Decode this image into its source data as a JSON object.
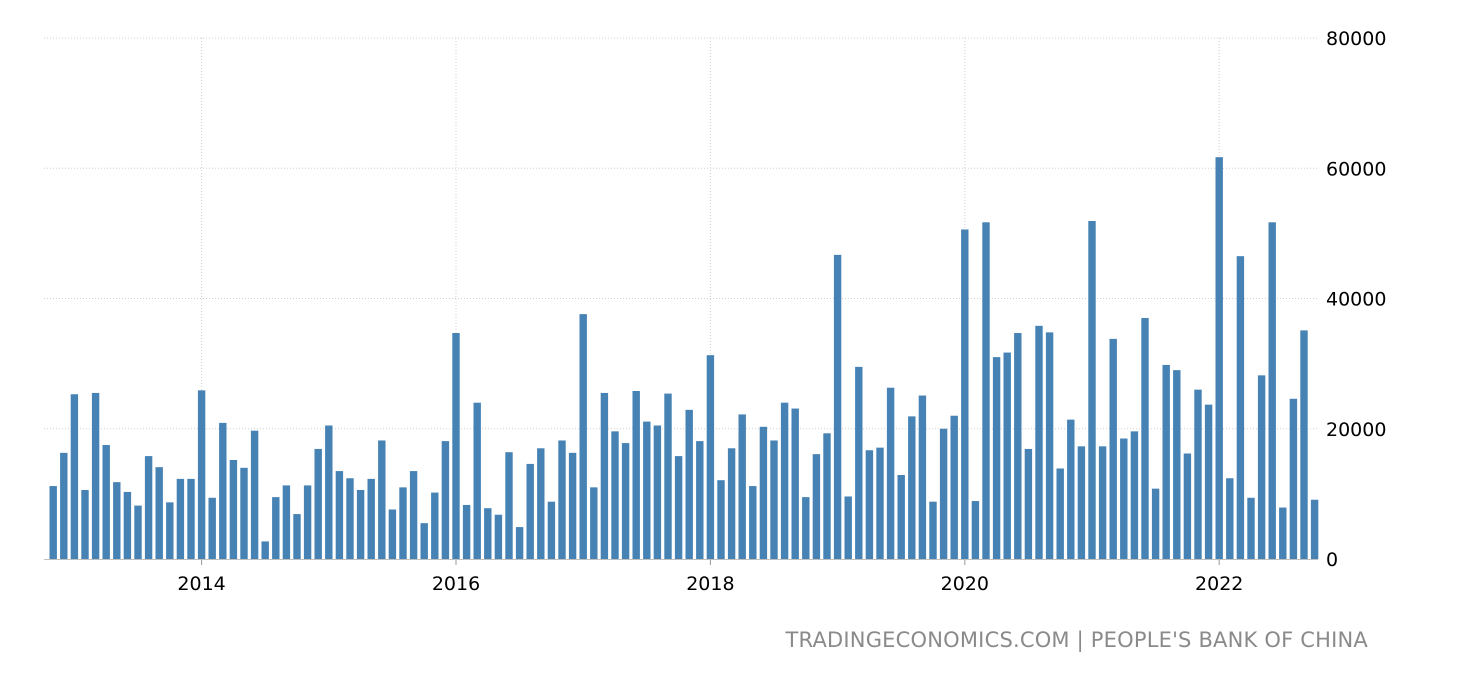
{
  "source": "TRADINGECONOMICS.COM | PEOPLE'S BANK OF CHINA",
  "chart_data": {
    "type": "bar",
    "title": "",
    "xlabel": "",
    "ylabel": "",
    "ylim": [
      0,
      80000
    ],
    "y_ticks": [
      "0",
      "20000",
      "40000",
      "60000",
      "80000"
    ],
    "x_ticks": [
      "2014",
      "2016",
      "2018",
      "2020",
      "2022"
    ],
    "x_start": "2012-11",
    "frequency": "monthly",
    "bar_color": "#4682b4",
    "grid": true,
    "legend": "none",
    "values": [
      11200,
      16300,
      25300,
      10600,
      25500,
      17500,
      11800,
      10300,
      8200,
      15800,
      14100,
      8700,
      12300,
      12300,
      25900,
      9400,
      20900,
      15200,
      14000,
      19700,
      2700,
      9500,
      11300,
      6900,
      11300,
      16900,
      20500,
      13500,
      12400,
      10600,
      12300,
      18200,
      7600,
      11000,
      13500,
      5500,
      10200,
      18100,
      34700,
      8300,
      24000,
      7800,
      6800,
      16400,
      4900,
      14600,
      17000,
      8800,
      18200,
      16300,
      37600,
      11000,
      25500,
      19600,
      17800,
      25800,
      21100,
      20500,
      25400,
      15800,
      22900,
      18100,
      31300,
      12100,
      17000,
      22200,
      11200,
      20300,
      18200,
      24000,
      23100,
      9500,
      16100,
      19300,
      46700,
      9600,
      29500,
      16700,
      17100,
      26300,
      12900,
      21900,
      25100,
      8800,
      20000,
      22000,
      50600,
      8900,
      51700,
      31000,
      31700,
      34700,
      16900,
      35800,
      34800,
      13900,
      21400,
      17300,
      51900,
      17300,
      33800,
      18500,
      19600,
      37000,
      10800,
      29800,
      29000,
      16200,
      26000,
      23700,
      61700,
      12400,
      46500,
      9400,
      28200,
      51700,
      7900,
      24600,
      35100,
      9100
    ]
  }
}
